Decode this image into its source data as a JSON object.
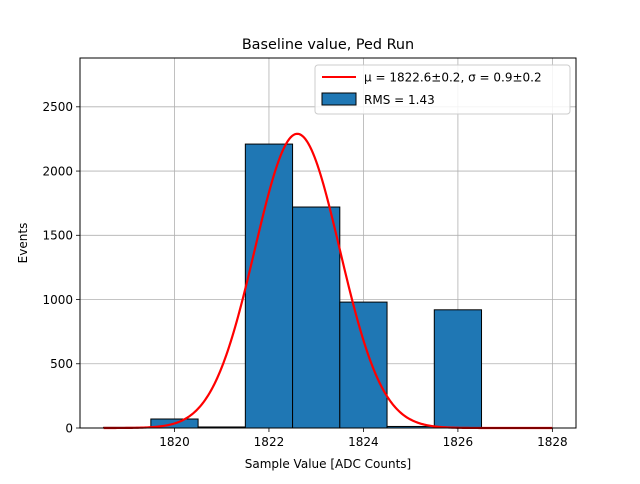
{
  "chart_data": {
    "type": "bar",
    "title": "Baseline value, Ped Run",
    "xlabel": "Sample Value [ADC Counts]",
    "ylabel": "Events",
    "xlim": [
      1818.0,
      1828.5
    ],
    "ylim": [
      0,
      2880
    ],
    "xticks": [
      1820,
      1822,
      1824,
      1826,
      1828
    ],
    "yticks": [
      0,
      500,
      1000,
      1500,
      2000,
      2500
    ],
    "grid": true,
    "histogram": {
      "name": "RMS = 1.43",
      "color": "#1f77b4",
      "edge_color": "#000000",
      "bins": [
        {
          "x0": 1818.5,
          "x1": 1819.5,
          "count": 5
        },
        {
          "x0": 1819.5,
          "x1": 1820.5,
          "count": 70
        },
        {
          "x0": 1820.5,
          "x1": 1821.5,
          "count": 8
        },
        {
          "x0": 1821.5,
          "x1": 1822.5,
          "count": 2210
        },
        {
          "x0": 1822.5,
          "x1": 1823.5,
          "count": 1720
        },
        {
          "x0": 1823.5,
          "x1": 1824.5,
          "count": 980
        },
        {
          "x0": 1824.5,
          "x1": 1825.5,
          "count": 12
        },
        {
          "x0": 1825.5,
          "x1": 1826.5,
          "count": 920
        }
      ]
    },
    "fit": {
      "name": "μ = 1822.6±0.2, σ = 0.9±0.2",
      "type": "gaussian",
      "color": "#ff0000",
      "mu": 1822.6,
      "sigma": 0.9,
      "amplitude": 2290,
      "x_range": [
        1818.5,
        1828.0
      ]
    },
    "legend": {
      "position": "top-right",
      "entries": [
        {
          "kind": "line",
          "label": "μ = 1822.6±0.2, σ = 0.9±0.2"
        },
        {
          "kind": "patch",
          "label": "RMS = 1.43"
        }
      ]
    }
  }
}
